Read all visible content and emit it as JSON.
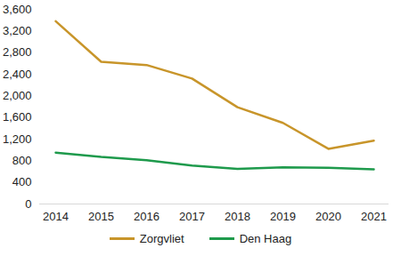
{
  "chart_data": {
    "type": "line",
    "categories": [
      "2014",
      "2015",
      "2016",
      "2017",
      "2018",
      "2019",
      "2020",
      "2021"
    ],
    "series": [
      {
        "name": "Zorgvliet",
        "color": "#c8952a",
        "values": [
          3380,
          2630,
          2570,
          2320,
          1790,
          1500,
          1020,
          1170
        ]
      },
      {
        "name": "Den Haag",
        "color": "#1e9a4c",
        "values": [
          950,
          870,
          810,
          710,
          650,
          680,
          670,
          640
        ]
      }
    ],
    "ylim": [
      0,
      3600
    ],
    "yticks": [
      0,
      400,
      800,
      1200,
      1600,
      2000,
      2400,
      2800,
      3200,
      3600
    ],
    "grid": false,
    "legend": "bottom"
  }
}
